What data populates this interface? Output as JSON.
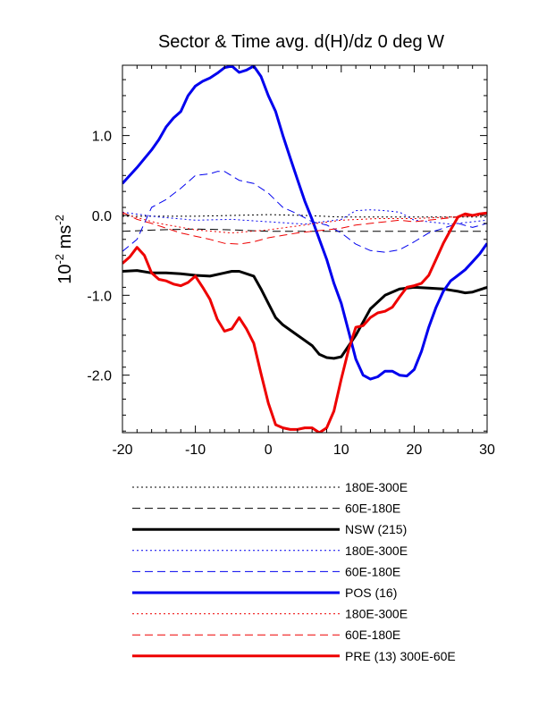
{
  "chart_data": {
    "type": "line",
    "title": "Sector & Time avg. d(H)/dz 0 deg W",
    "ylabel": {
      "base": "10",
      "exp1": "-2",
      "unit": " ms",
      "exp2": "-2"
    },
    "xlabel": "",
    "xlim": [
      -20,
      30
    ],
    "ylim": [
      -2.72,
      1.88
    ],
    "xticks": [
      -20,
      -10,
      0,
      10,
      20,
      30
    ],
    "xtick_labels": [
      "-20",
      "-10",
      "0",
      "10",
      "20",
      "30"
    ],
    "yticks": [
      1.0,
      0.0,
      -1.0,
      -2.0
    ],
    "ytick_labels": [
      "1.0",
      "0.0",
      "-1.0",
      "-2.0"
    ],
    "grid": false,
    "legend_position": "below",
    "series": [
      {
        "name": "180E-300E",
        "color": "#000000",
        "dash": "dot",
        "width": 1,
        "x": [
          -20,
          -15,
          -10,
          -5,
          0,
          5,
          10,
          15,
          20,
          25,
          30
        ],
        "y": [
          -0.01,
          -0.01,
          -0.01,
          0.0,
          0.01,
          0.0,
          -0.02,
          -0.02,
          -0.02,
          -0.02,
          -0.02
        ]
      },
      {
        "name": "60E-180E",
        "color": "#000000",
        "dash": "long",
        "width": 1,
        "x": [
          -20,
          -15,
          -10,
          -5,
          0,
          5,
          10,
          15,
          20,
          25,
          30
        ],
        "y": [
          -0.2,
          -0.18,
          -0.17,
          -0.18,
          -0.2,
          -0.2,
          -0.2,
          -0.2,
          -0.2,
          -0.2,
          -0.2
        ]
      },
      {
        "name": "NSW (215)",
        "color": "#000000",
        "dash": "solid",
        "width": 3,
        "x": [
          -20,
          -18,
          -16,
          -14,
          -12,
          -10,
          -8,
          -6,
          -5,
          -4,
          -2,
          -1,
          0,
          1,
          2,
          4,
          6,
          7,
          8,
          9,
          10,
          12,
          14,
          16,
          18,
          20,
          22,
          24,
          26,
          27,
          28,
          30
        ],
        "y": [
          -0.7,
          -0.69,
          -0.72,
          -0.72,
          -0.73,
          -0.75,
          -0.76,
          -0.72,
          -0.7,
          -0.7,
          -0.76,
          -0.92,
          -1.1,
          -1.28,
          -1.37,
          -1.5,
          -1.63,
          -1.74,
          -1.78,
          -1.79,
          -1.77,
          -1.5,
          -1.17,
          -1.0,
          -0.92,
          -0.9,
          -0.91,
          -0.92,
          -0.95,
          -0.97,
          -0.96,
          -0.9
        ]
      },
      {
        "name": "180E-300E",
        "color": "#0000ee",
        "dash": "dot",
        "width": 1,
        "x": [
          -20,
          -15,
          -10,
          -5,
          0,
          5,
          10,
          12,
          14,
          16,
          18,
          20,
          25,
          30
        ],
        "y": [
          0.04,
          -0.02,
          -0.06,
          -0.05,
          -0.08,
          -0.11,
          -0.05,
          0.06,
          0.07,
          0.06,
          0.04,
          -0.06,
          -0.11,
          -0.06
        ]
      },
      {
        "name": "60E-180E",
        "color": "#0000ee",
        "dash": "long",
        "width": 1,
        "x": [
          -20,
          -18,
          -16,
          -14,
          -12,
          -10,
          -8,
          -7,
          -6,
          -4,
          -2,
          0,
          2,
          4,
          6,
          8,
          10,
          12,
          14,
          16,
          18,
          20,
          22,
          24,
          26,
          28,
          30
        ],
        "y": [
          -0.45,
          -0.3,
          0.1,
          0.2,
          0.34,
          0.5,
          0.52,
          0.55,
          0.55,
          0.44,
          0.4,
          0.28,
          0.1,
          0.02,
          -0.08,
          -0.12,
          -0.22,
          -0.36,
          -0.44,
          -0.46,
          -0.43,
          -0.33,
          -0.22,
          -0.16,
          -0.1,
          -0.15,
          -0.1
        ]
      },
      {
        "name": "POS (16)",
        "color": "#0000ee",
        "dash": "solid",
        "width": 3,
        "x": [
          -20,
          -18,
          -16,
          -15,
          -14,
          -13,
          -12,
          -11,
          -10,
          -9,
          -8,
          -7,
          -6,
          -5,
          -4,
          -3,
          -2,
          -1,
          0,
          1,
          2,
          3,
          4,
          5,
          6,
          7,
          8,
          9,
          10,
          11,
          12,
          13,
          14,
          15,
          16,
          17,
          18,
          19,
          20,
          21,
          22,
          23,
          24,
          25,
          26,
          27,
          28,
          29,
          30
        ],
        "y": [
          0.4,
          0.6,
          0.82,
          0.95,
          1.11,
          1.22,
          1.3,
          1.5,
          1.62,
          1.68,
          1.72,
          1.78,
          1.85,
          1.87,
          1.79,
          1.82,
          1.87,
          1.74,
          1.5,
          1.3,
          1.0,
          0.72,
          0.45,
          0.18,
          -0.05,
          -0.3,
          -0.55,
          -0.85,
          -1.1,
          -1.45,
          -1.8,
          -2.0,
          -2.05,
          -2.02,
          -1.95,
          -1.95,
          -2.0,
          -2.01,
          -1.93,
          -1.7,
          -1.4,
          -1.15,
          -0.95,
          -0.82,
          -0.75,
          -0.68,
          -0.58,
          -0.48,
          -0.35
        ]
      },
      {
        "name": "180E-300E",
        "color": "#ee0000",
        "dash": "dot",
        "width": 1,
        "x": [
          -20,
          -15,
          -10,
          -5,
          0,
          5,
          10,
          15,
          20,
          25,
          30
        ],
        "y": [
          0.02,
          -0.1,
          -0.18,
          -0.22,
          -0.18,
          -0.12,
          -0.06,
          -0.04,
          -0.04,
          -0.02,
          0.0
        ]
      },
      {
        "name": "60E-180E",
        "color": "#ee0000",
        "dash": "long",
        "width": 1,
        "x": [
          -20,
          -18,
          -16,
          -14,
          -12,
          -10,
          -8,
          -6,
          -4,
          -2,
          0,
          2,
          4,
          6,
          8,
          10,
          12,
          14,
          16,
          18,
          20,
          22,
          24,
          26,
          28,
          30
        ],
        "y": [
          0.04,
          -0.05,
          -0.1,
          -0.16,
          -0.22,
          -0.26,
          -0.3,
          -0.35,
          -0.36,
          -0.33,
          -0.28,
          -0.25,
          -0.22,
          -0.2,
          -0.18,
          -0.16,
          -0.12,
          -0.1,
          -0.08,
          -0.06,
          -0.08,
          -0.06,
          -0.04,
          -0.02,
          0.0,
          0.03
        ]
      },
      {
        "name": "PRE (13) 300E-60E",
        "color": "#ee0000",
        "dash": "solid",
        "width": 3,
        "x": [
          -20,
          -19,
          -18,
          -17,
          -16,
          -15,
          -14,
          -13,
          -12,
          -11,
          -10,
          -9,
          -8,
          -7,
          -6,
          -5,
          -4,
          -3,
          -2,
          -1,
          0,
          1,
          2,
          3,
          4,
          5,
          6,
          7,
          8,
          9,
          10,
          11,
          12,
          13,
          14,
          15,
          16,
          17,
          18,
          19,
          20,
          21,
          22,
          23,
          24,
          25,
          26,
          27,
          28,
          29,
          30
        ],
        "y": [
          -0.6,
          -0.52,
          -0.4,
          -0.5,
          -0.72,
          -0.8,
          -0.82,
          -0.86,
          -0.88,
          -0.84,
          -0.76,
          -0.9,
          -1.05,
          -1.3,
          -1.45,
          -1.42,
          -1.28,
          -1.42,
          -1.6,
          -1.98,
          -2.35,
          -2.62,
          -2.66,
          -2.68,
          -2.68,
          -2.66,
          -2.66,
          -2.72,
          -2.66,
          -2.45,
          -2.05,
          -1.68,
          -1.4,
          -1.38,
          -1.28,
          -1.22,
          -1.2,
          -1.15,
          -1.02,
          -0.9,
          -0.88,
          -0.85,
          -0.75,
          -0.55,
          -0.35,
          -0.18,
          -0.02,
          0.02,
          0.0,
          0.02,
          0.03
        ]
      }
    ],
    "legend_order": [
      0,
      1,
      2,
      3,
      4,
      5,
      6,
      7,
      8
    ]
  }
}
